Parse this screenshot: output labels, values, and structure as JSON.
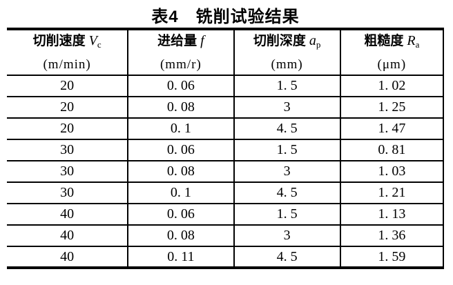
{
  "title": "表4　铣削试验结果",
  "table": {
    "headers": [
      {
        "name": "切削速度",
        "symbol": "V",
        "subscript": "c",
        "unit": "(m/min)"
      },
      {
        "name": "进给量",
        "symbol": "f",
        "subscript": "",
        "unit": "(mm/r)"
      },
      {
        "name": "切削深度",
        "symbol": "a",
        "subscript": "p",
        "unit": "(mm)"
      },
      {
        "name": "粗糙度",
        "symbol": "R",
        "subscript": "a",
        "unit": "(μm)"
      }
    ],
    "rows": [
      [
        "20",
        "0. 06",
        "1. 5",
        "1. 02"
      ],
      [
        "20",
        "0. 08",
        "3",
        "1. 25"
      ],
      [
        "20",
        "0. 1",
        "4. 5",
        "1. 47"
      ],
      [
        "30",
        "0. 06",
        "1. 5",
        "0. 81"
      ],
      [
        "30",
        "0. 08",
        "3",
        "1. 03"
      ],
      [
        "30",
        "0. 1",
        "4. 5",
        "1. 21"
      ],
      [
        "40",
        "0. 06",
        "1. 5",
        "1. 13"
      ],
      [
        "40",
        "0. 08",
        "3",
        "1. 36"
      ],
      [
        "40",
        "0. 11",
        "4. 5",
        "1. 59"
      ]
    ]
  },
  "chart_data": {
    "type": "table",
    "title": "表4 铣削试验结果",
    "columns": [
      "切削速度 Vc (m/min)",
      "进给量 f (mm/r)",
      "切削深度 ap (mm)",
      "粗糙度 Ra (μm)"
    ],
    "rows": [
      [
        20,
        0.06,
        1.5,
        1.02
      ],
      [
        20,
        0.08,
        3,
        1.25
      ],
      [
        20,
        0.1,
        4.5,
        1.47
      ],
      [
        30,
        0.06,
        1.5,
        0.81
      ],
      [
        30,
        0.08,
        3,
        1.03
      ],
      [
        30,
        0.1,
        4.5,
        1.21
      ],
      [
        40,
        0.06,
        1.5,
        1.13
      ],
      [
        40,
        0.08,
        3,
        1.36
      ],
      [
        40,
        0.11,
        4.5,
        1.59
      ]
    ]
  },
  "colors": {
    "text": "#000000",
    "background": "#ffffff",
    "border": "#000000"
  }
}
